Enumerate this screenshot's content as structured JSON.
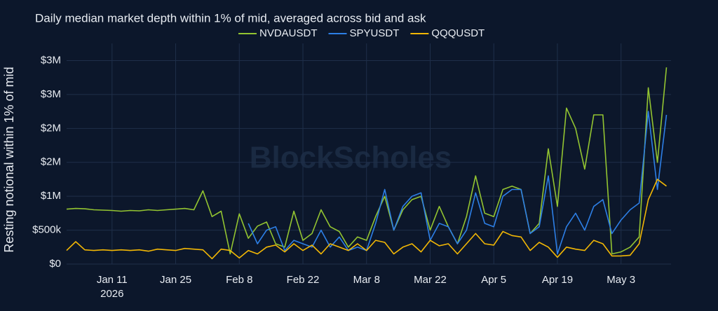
{
  "chart_data": {
    "type": "line",
    "title": "Daily median market depth within 1% of mid, averaged across bid and ask",
    "y_label": "Resting notional within 1% of mid",
    "watermark": "BlockScholes",
    "x": [
      "2026-01-01",
      "2026-01-03",
      "2026-01-05",
      "2026-01-07",
      "2026-01-09",
      "2026-01-11",
      "2026-01-13",
      "2026-01-15",
      "2026-01-17",
      "2026-01-19",
      "2026-01-21",
      "2026-01-23",
      "2026-01-25",
      "2026-01-27",
      "2026-01-29",
      "2026-01-31",
      "2026-02-02",
      "2026-02-04",
      "2026-02-06",
      "2026-02-08",
      "2026-02-10",
      "2026-02-12",
      "2026-02-14",
      "2026-02-16",
      "2026-02-18",
      "2026-02-20",
      "2026-02-22",
      "2026-02-24",
      "2026-02-26",
      "2026-02-28",
      "2026-03-02",
      "2026-03-04",
      "2026-03-06",
      "2026-03-08",
      "2026-03-10",
      "2026-03-12",
      "2026-03-14",
      "2026-03-16",
      "2026-03-18",
      "2026-03-20",
      "2026-03-22",
      "2026-03-24",
      "2026-03-26",
      "2026-03-28",
      "2026-03-30",
      "2026-04-01",
      "2026-04-03",
      "2026-04-05",
      "2026-04-07",
      "2026-04-09",
      "2026-04-11",
      "2026-04-13",
      "2026-04-15",
      "2026-04-17",
      "2026-04-19",
      "2026-04-21",
      "2026-04-23",
      "2026-04-25",
      "2026-04-27",
      "2026-04-29",
      "2026-05-01",
      "2026-05-03",
      "2026-05-05",
      "2026-05-07",
      "2026-05-09",
      "2026-05-11",
      "2026-05-13"
    ],
    "series": [
      {
        "name": "NVDAUSDT",
        "color": "#93c431",
        "values": [
          810000,
          820000,
          815000,
          800000,
          795000,
          790000,
          780000,
          790000,
          785000,
          800000,
          790000,
          800000,
          810000,
          820000,
          800000,
          1080000,
          700000,
          780000,
          150000,
          740000,
          380000,
          560000,
          620000,
          300000,
          250000,
          780000,
          350000,
          450000,
          800000,
          550000,
          480000,
          250000,
          400000,
          350000,
          700000,
          1000000,
          500000,
          800000,
          950000,
          1000000,
          500000,
          850000,
          550000,
          300000,
          700000,
          1300000,
          750000,
          700000,
          1100000,
          1150000,
          1100000,
          450000,
          600000,
          1700000,
          850000,
          2300000,
          2000000,
          1400000,
          2200000,
          2200000,
          150000,
          180000,
          250000,
          400000,
          2600000,
          1500000,
          2900000
        ]
      },
      {
        "name": "SPYUSDT",
        "color": "#2d7fe6",
        "values": [
          null,
          null,
          null,
          null,
          null,
          null,
          null,
          null,
          null,
          null,
          null,
          null,
          null,
          null,
          null,
          null,
          null,
          null,
          null,
          null,
          600000,
          300000,
          500000,
          550000,
          200000,
          350000,
          300000,
          250000,
          500000,
          250000,
          400000,
          200000,
          250000,
          200000,
          600000,
          1100000,
          500000,
          850000,
          1000000,
          1050000,
          350000,
          600000,
          550000,
          300000,
          500000,
          1050000,
          600000,
          550000,
          1000000,
          1100000,
          1100000,
          450000,
          550000,
          1300000,
          150000,
          550000,
          750000,
          500000,
          850000,
          950000,
          450000,
          650000,
          800000,
          900000,
          2250000,
          1100000,
          2200000
        ]
      },
      {
        "name": "QQQUSDT",
        "color": "#f2b705",
        "values": [
          200000,
          330000,
          210000,
          200000,
          210000,
          200000,
          210000,
          200000,
          210000,
          190000,
          220000,
          210000,
          200000,
          230000,
          220000,
          210000,
          80000,
          220000,
          200000,
          90000,
          200000,
          150000,
          250000,
          280000,
          180000,
          300000,
          200000,
          280000,
          150000,
          300000,
          250000,
          200000,
          300000,
          200000,
          350000,
          320000,
          150000,
          250000,
          300000,
          180000,
          350000,
          270000,
          300000,
          150000,
          300000,
          450000,
          300000,
          280000,
          480000,
          420000,
          400000,
          200000,
          320000,
          250000,
          100000,
          250000,
          220000,
          200000,
          350000,
          300000,
          120000,
          120000,
          130000,
          300000,
          950000,
          1250000,
          1150000
        ]
      }
    ],
    "xlim": [
      "2026-01-01",
      "2026-05-14"
    ],
    "xticks": [
      {
        "value": "2026-01-11",
        "label": "Jan 11\n2026"
      },
      {
        "value": "2026-01-25",
        "label": "Jan 25"
      },
      {
        "value": "2026-02-08",
        "label": "Feb 8"
      },
      {
        "value": "2026-02-22",
        "label": "Feb 22"
      },
      {
        "value": "2026-03-08",
        "label": "Mar 8"
      },
      {
        "value": "2026-03-22",
        "label": "Mar 22"
      },
      {
        "value": "2026-04-05",
        "label": "Apr 5"
      },
      {
        "value": "2026-04-19",
        "label": "Apr 19"
      },
      {
        "value": "2026-05-03",
        "label": "May 3"
      }
    ],
    "ylim": [
      0,
      3150000
    ],
    "yticks": [
      {
        "value": 0,
        "label": "$0"
      },
      {
        "value": 500000,
        "label": "$500k"
      },
      {
        "value": 1000000,
        "label": "$1M"
      },
      {
        "value": 1500000,
        "label": "$2M"
      },
      {
        "value": 2000000,
        "label": "$2M"
      },
      {
        "value": 2500000,
        "label": "$3M"
      },
      {
        "value": 3000000,
        "label": "$3M"
      }
    ],
    "grid": true,
    "legend": "top"
  }
}
